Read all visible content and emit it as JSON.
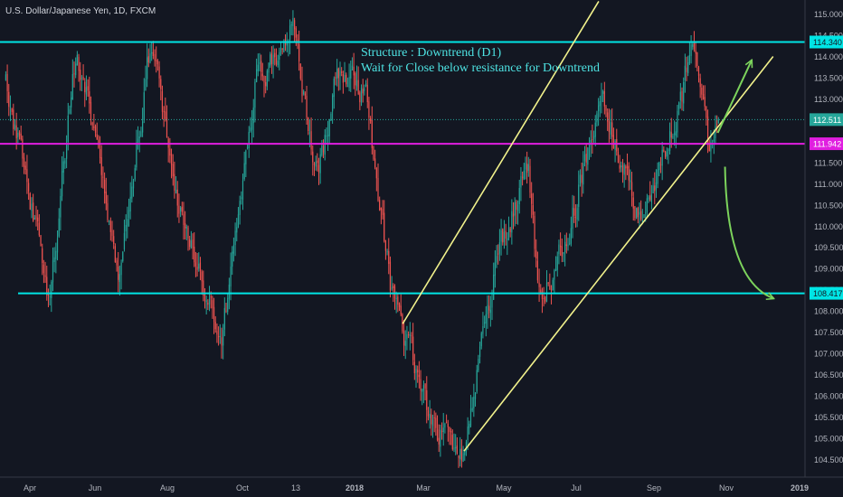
{
  "colors": {
    "background": "#131722",
    "axis_text": "#b2b5be",
    "candle_up": "#26a69a",
    "candle_down": "#ef5350",
    "horizontal_level": "#00e5e5",
    "pivot_level": "#e01ee0",
    "channel": "#f2f28c",
    "arrows": "#7cd35c",
    "annotation_text": "#4ee3e3",
    "last_price_label": "#26a69a"
  },
  "header": {
    "symbol_title": "U.S. Dollar/Japanese Yen, 1D, FXCM"
  },
  "annotation": {
    "line1": "Structure : Downtrend (D1)",
    "line2": "Wait for Close below resistance for Downtrend"
  },
  "chart_data": {
    "type": "candlestick",
    "title": "U.S. Dollar/Japanese Yen, 1D, FXCM",
    "x_axis": {
      "tick_labels": [
        "Apr",
        "Jun",
        "Aug",
        "Oct",
        "13",
        "2018",
        "Mar",
        "May",
        "Jul",
        "Sep",
        "Nov",
        "2019"
      ],
      "range": [
        "2017-03-10",
        "2019-01-05"
      ]
    },
    "y_axis": {
      "position": "right",
      "range": [
        104.2,
        115.3
      ],
      "tick_labels": [
        "115.000",
        "114.500",
        "114.000",
        "113.500",
        "113.000",
        "112.500",
        "112.000",
        "111.500",
        "111.000",
        "110.500",
        "110.000",
        "109.500",
        "109.000",
        "108.500",
        "108.000",
        "107.500",
        "107.000",
        "106.500",
        "106.000",
        "105.500",
        "105.000",
        "104.500"
      ]
    },
    "price_labels": [
      {
        "value": "114.340",
        "role": "resistance level"
      },
      {
        "value": "112.511",
        "role": "last price"
      },
      {
        "value": "111.942",
        "role": "pivot level"
      },
      {
        "value": "108.417",
        "role": "support level"
      }
    ],
    "horizontal_levels": [
      {
        "price": 114.34,
        "color": "cyan"
      },
      {
        "price": 111.942,
        "color": "magenta"
      },
      {
        "price": 108.417,
        "color": "cyan"
      }
    ],
    "last_price": 112.511,
    "approx_price_path": [
      {
        "date": "2017-03-12",
        "close": 113.5
      },
      {
        "date": "2017-04-17",
        "close": 108.3
      },
      {
        "date": "2017-05-10",
        "close": 114.3
      },
      {
        "date": "2017-06-14",
        "close": 108.9
      },
      {
        "date": "2017-07-11",
        "close": 114.4
      },
      {
        "date": "2017-08-08",
        "close": 109.8
      },
      {
        "date": "2017-09-08",
        "close": 107.4
      },
      {
        "date": "2017-10-06",
        "close": 113.4
      },
      {
        "date": "2017-11-06",
        "close": 114.7
      },
      {
        "date": "2017-11-27",
        "close": 111.1
      },
      {
        "date": "2017-12-12",
        "close": 113.7
      },
      {
        "date": "2018-01-05",
        "close": 113.2
      },
      {
        "date": "2018-01-26",
        "close": 108.5
      },
      {
        "date": "2018-02-14",
        "close": 106.8
      },
      {
        "date": "2018-03-02",
        "close": 105.3
      },
      {
        "date": "2018-03-26",
        "close": 104.7
      },
      {
        "date": "2018-04-27",
        "close": 109.6
      },
      {
        "date": "2018-05-21",
        "close": 111.3
      },
      {
        "date": "2018-05-29",
        "close": 108.2
      },
      {
        "date": "2018-06-22",
        "close": 109.7
      },
      {
        "date": "2018-07-19",
        "close": 113.1
      },
      {
        "date": "2018-08-21",
        "close": 110.1
      },
      {
        "date": "2018-09-25",
        "close": 112.9
      },
      {
        "date": "2018-10-04",
        "close": 114.5
      },
      {
        "date": "2018-10-18",
        "close": 111.7
      },
      {
        "date": "2018-10-26",
        "close": 112.511
      }
    ],
    "drawings": {
      "channel_lines": [
        {
          "from": {
            "date": "2018-02-05",
            "price": 107.7
          },
          "to": {
            "date": "2018-07-18",
            "price": 115.3
          }
        },
        {
          "from": {
            "date": "2018-03-28",
            "price": 104.7
          },
          "to": {
            "date": "2018-12-10",
            "price": 114.0
          }
        }
      ],
      "arrows": [
        {
          "from": {
            "date": "2018-10-25",
            "price": 112.2
          },
          "to": {
            "date": "2018-11-22",
            "price": 113.9
          },
          "shape": "straight"
        },
        {
          "from": {
            "date": "2018-10-31",
            "price": 111.4
          },
          "to": {
            "date": "2018-12-10",
            "price": 108.3
          },
          "shape": "curved"
        }
      ]
    },
    "grid": false,
    "legend": "none"
  }
}
